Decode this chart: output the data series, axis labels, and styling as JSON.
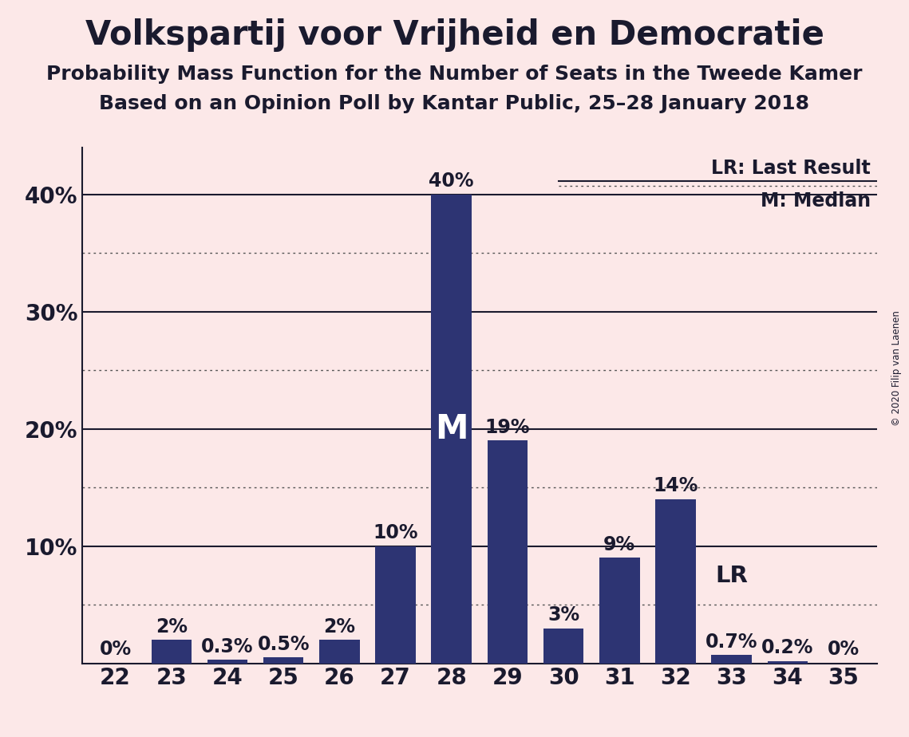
{
  "title": "Volkspartij voor Vrijheid en Democratie",
  "subtitle1": "Probability Mass Function for the Number of Seats in the Tweede Kamer",
  "subtitle2": "Based on an Opinion Poll by Kantar Public, 25–28 January 2018",
  "copyright": "© 2020 Filip van Laenen",
  "categories": [
    22,
    23,
    24,
    25,
    26,
    27,
    28,
    29,
    30,
    31,
    32,
    33,
    34,
    35
  ],
  "values": [
    0.0,
    2.0,
    0.3,
    0.5,
    2.0,
    10.0,
    40.0,
    19.0,
    3.0,
    9.0,
    14.0,
    0.7,
    0.2,
    0.0
  ],
  "labels": [
    "0%",
    "2%",
    "0.3%",
    "0.5%",
    "2%",
    "10%",
    "40%",
    "19%",
    "3%",
    "9%",
    "14%",
    "0.7%",
    "0.2%",
    "0%"
  ],
  "bar_color": "#2d3473",
  "background_color": "#fce8e8",
  "median_seat": 28,
  "lr_seat": 33,
  "ylim": [
    0,
    44
  ],
  "solid_lines": [
    10,
    20,
    30,
    40
  ],
  "dotted_lines": [
    5,
    15,
    25,
    35
  ],
  "yticks": [
    0,
    10,
    20,
    30,
    40
  ],
  "ytick_labels": [
    "",
    "10%",
    "20%",
    "30%",
    "40%"
  ],
  "legend_lr_text": "LR: Last Result",
  "legend_m_text": "M: Median",
  "text_color": "#1a1a2e",
  "solid_line_color": "#1a1a2e",
  "dotted_line_color": "#555555",
  "title_fontsize": 30,
  "subtitle_fontsize": 18,
  "axis_fontsize": 20,
  "bar_label_fontsize": 17,
  "legend_fontsize": 17,
  "median_label_fontsize": 30
}
